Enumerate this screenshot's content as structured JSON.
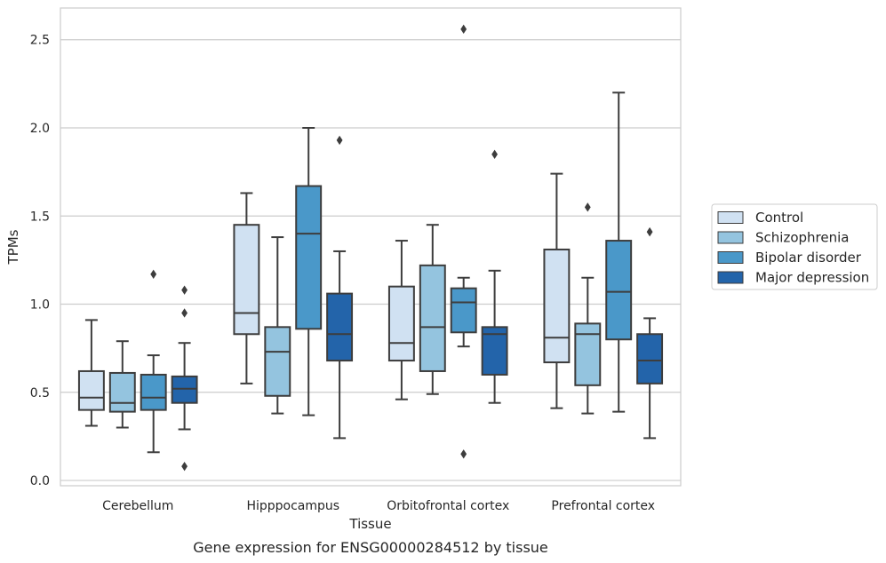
{
  "chart_data": {
    "type": "box",
    "title": "",
    "caption": "Gene expression for ENSG00000284512 by tissue",
    "xlabel": "Tissue",
    "ylabel": "TPMs",
    "ylim": [
      -0.03,
      2.68
    ],
    "yticks": [
      "0.0",
      "0.5",
      "1.0",
      "1.5",
      "2.0",
      "2.5"
    ],
    "grid": true,
    "legend_position": "right",
    "categories": [
      "Cerebellum",
      "Hipppocampus",
      "Orbitofrontal cortex",
      "Prefrontal cortex"
    ],
    "series": [
      {
        "name": "Control",
        "color": "#d0e1f2",
        "boxes": [
          {
            "whislo": 0.31,
            "q1": 0.4,
            "med": 0.47,
            "q3": 0.62,
            "whishi": 0.91,
            "fliers": []
          },
          {
            "whislo": 0.55,
            "q1": 0.83,
            "med": 0.95,
            "q3": 1.45,
            "whishi": 1.63,
            "fliers": []
          },
          {
            "whislo": 0.46,
            "q1": 0.68,
            "med": 0.78,
            "q3": 1.1,
            "whishi": 1.36,
            "fliers": []
          },
          {
            "whislo": 0.41,
            "q1": 0.67,
            "med": 0.81,
            "q3": 1.31,
            "whishi": 1.74,
            "fliers": []
          }
        ]
      },
      {
        "name": "Schizophrenia",
        "color": "#94c4df",
        "boxes": [
          {
            "whislo": 0.3,
            "q1": 0.39,
            "med": 0.44,
            "q3": 0.61,
            "whishi": 0.79,
            "fliers": []
          },
          {
            "whislo": 0.38,
            "q1": 0.48,
            "med": 0.73,
            "q3": 0.87,
            "whishi": 1.38,
            "fliers": []
          },
          {
            "whislo": 0.49,
            "q1": 0.62,
            "med": 0.87,
            "q3": 1.22,
            "whishi": 1.45,
            "fliers": []
          },
          {
            "whislo": 0.38,
            "q1": 0.54,
            "med": 0.83,
            "q3": 0.89,
            "whishi": 1.15,
            "fliers": [
              1.55
            ]
          }
        ]
      },
      {
        "name": "Bipolar disorder",
        "color": "#4a98c9",
        "boxes": [
          {
            "whislo": 0.16,
            "q1": 0.4,
            "med": 0.47,
            "q3": 0.6,
            "whishi": 0.71,
            "fliers": [
              1.17
            ]
          },
          {
            "whislo": 0.37,
            "q1": 0.86,
            "med": 1.4,
            "q3": 1.67,
            "whishi": 2.0,
            "fliers": []
          },
          {
            "whislo": 0.76,
            "q1": 0.84,
            "med": 1.01,
            "q3": 1.09,
            "whishi": 1.15,
            "fliers": [
              2.56,
              0.15
            ]
          },
          {
            "whislo": 0.39,
            "q1": 0.8,
            "med": 1.07,
            "q3": 1.36,
            "whishi": 2.2,
            "fliers": []
          }
        ]
      },
      {
        "name": "Major depression",
        "color": "#2364aa",
        "boxes": [
          {
            "whislo": 0.29,
            "q1": 0.44,
            "med": 0.52,
            "q3": 0.59,
            "whishi": 0.78,
            "fliers": [
              1.08,
              0.95,
              0.08
            ]
          },
          {
            "whislo": 0.24,
            "q1": 0.68,
            "med": 0.83,
            "q3": 1.06,
            "whishi": 1.3,
            "fliers": [
              1.93
            ]
          },
          {
            "whislo": 0.44,
            "q1": 0.6,
            "med": 0.83,
            "q3": 0.87,
            "whishi": 1.19,
            "fliers": [
              1.85
            ]
          },
          {
            "whislo": 0.24,
            "q1": 0.55,
            "med": 0.68,
            "q3": 0.83,
            "whishi": 0.92,
            "fliers": [
              1.41
            ]
          }
        ]
      }
    ]
  }
}
